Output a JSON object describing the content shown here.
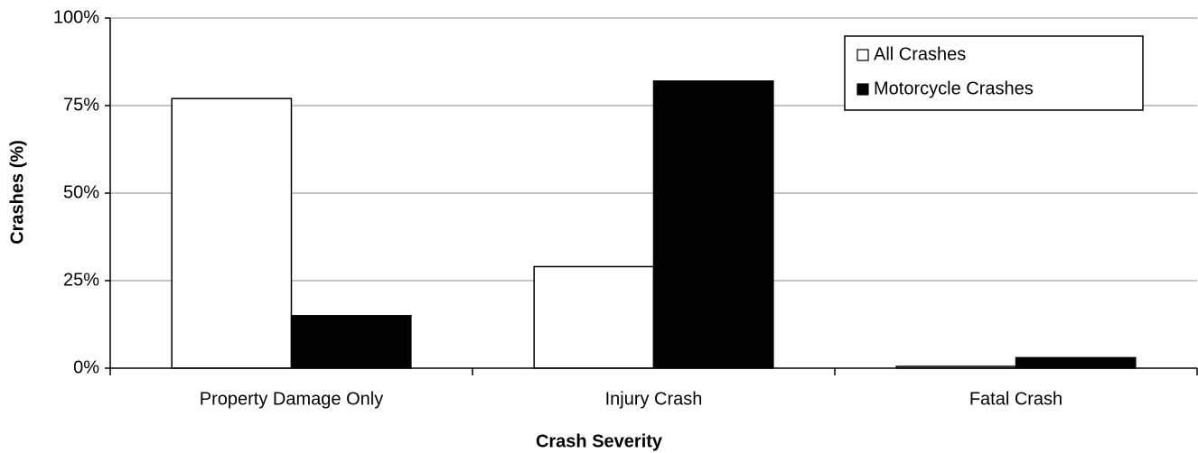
{
  "chart_data": {
    "type": "bar",
    "x_label": "Crash Severity",
    "y_label": "Crashes (%)",
    "categories": [
      "Property Damage Only",
      "Injury Crash",
      "Fatal Crash"
    ],
    "series": [
      {
        "name": "All Crashes",
        "color": "#ffffff",
        "values": [
          77,
          29,
          0.5
        ]
      },
      {
        "name": "Motorcycle Crashes",
        "color": "#000000",
        "values": [
          15,
          82,
          3
        ]
      }
    ],
    "ylim": [
      0,
      100
    ],
    "yticks": [
      {
        "value": 0,
        "label": "0%"
      },
      {
        "value": 25,
        "label": "25%"
      },
      {
        "value": 50,
        "label": "50%"
      },
      {
        "value": 75,
        "label": "75%"
      },
      {
        "value": 100,
        "label": "100%"
      }
    ],
    "grid": true,
    "legend": "upper right"
  }
}
